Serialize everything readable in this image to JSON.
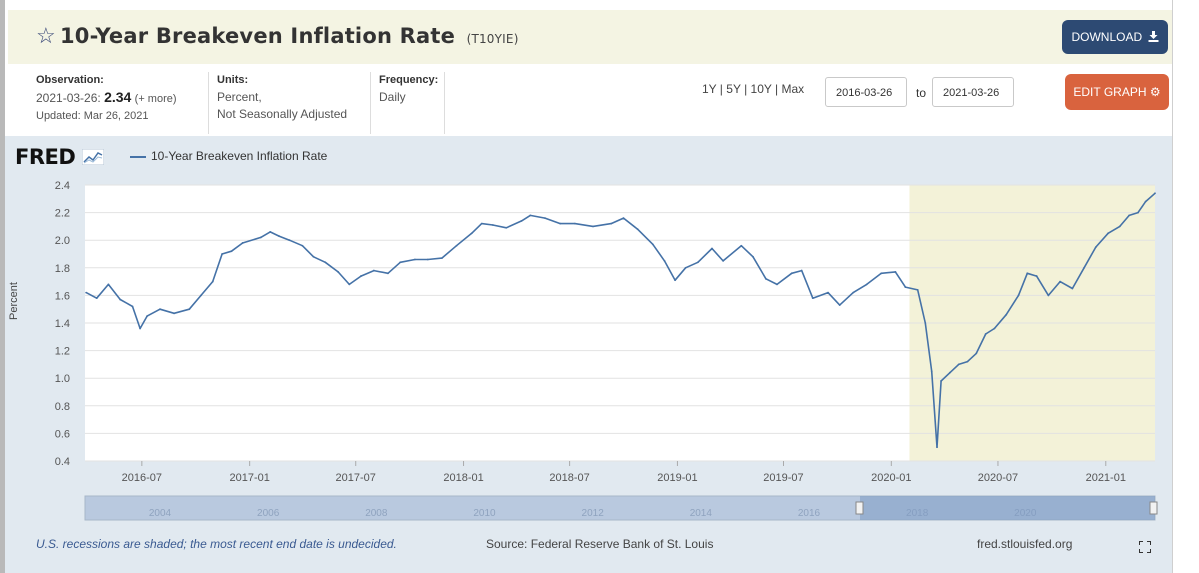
{
  "header": {
    "title": "10-Year Breakeven Inflation Rate",
    "series_id": "(T10YIE)",
    "download_label": "DOWNLOAD",
    "star_icon": "star-outline-icon",
    "download_icon": "download-icon"
  },
  "info": {
    "observation_label": "Observation:",
    "observation_date": "2021-03-26:",
    "observation_value": "2.34",
    "observation_more": "(+ more)",
    "updated": "Updated: Mar 26, 2021",
    "units_label": "Units:",
    "units_line1": "Percent,",
    "units_line2": "Not Seasonally Adjusted",
    "frequency_label": "Frequency:",
    "frequency_value": "Daily",
    "range_1y": "1Y",
    "range_5y": "5Y",
    "range_10y": "10Y",
    "range_max": "Max",
    "start_date": "2016-03-26",
    "to_label": "to",
    "end_date": "2021-03-26",
    "edit_label": "EDIT GRAPH",
    "edit_icon": "gear-icon"
  },
  "chart_header": {
    "logo": "FRED",
    "legend": "10-Year Breakeven Inflation Rate"
  },
  "footer": {
    "recession_note": "U.S. recessions are shaded; the most recent end date is undecided.",
    "source": "Source: Federal Reserve Bank of St. Louis",
    "url": "fred.stlouisfed.org",
    "fullscreen_icon": "fullscreen-icon"
  },
  "colors": {
    "line": "#4572a7",
    "recession": "#f3f2d8",
    "download": "#2d4a73",
    "edit": "#d9633e",
    "background": "#e1e9f0"
  },
  "chart_data": {
    "type": "line",
    "ylabel": "Percent",
    "ylim": [
      0.4,
      2.4
    ],
    "yticks": [
      "0.4",
      "0.6",
      "0.8",
      "1.0",
      "1.2",
      "1.4",
      "1.6",
      "1.8",
      "2.0",
      "2.2",
      "2.4"
    ],
    "xlim": [
      "2016-03-26",
      "2021-03-26"
    ],
    "xticks": [
      "2016-07",
      "2017-01",
      "2017-07",
      "2018-01",
      "2018-07",
      "2019-01",
      "2019-07",
      "2020-01",
      "2020-07",
      "2021-01"
    ],
    "grid": true,
    "recession_shading": [
      "2020-02-01",
      "2021-03-26"
    ],
    "series": [
      {
        "name": "10-Year Breakeven Inflation Rate",
        "points": [
          [
            "2016-03-28",
            1.62
          ],
          [
            "2016-04-15",
            1.58
          ],
          [
            "2016-05-05",
            1.68
          ],
          [
            "2016-05-25",
            1.57
          ],
          [
            "2016-06-15",
            1.52
          ],
          [
            "2016-06-28",
            1.36
          ],
          [
            "2016-07-10",
            1.45
          ],
          [
            "2016-08-01",
            1.5
          ],
          [
            "2016-08-25",
            1.47
          ],
          [
            "2016-09-20",
            1.5
          ],
          [
            "2016-10-10",
            1.6
          ],
          [
            "2016-10-30",
            1.7
          ],
          [
            "2016-11-15",
            1.9
          ],
          [
            "2016-12-01",
            1.92
          ],
          [
            "2016-12-20",
            1.98
          ],
          [
            "2017-01-20",
            2.02
          ],
          [
            "2017-02-05",
            2.06
          ],
          [
            "2017-02-20",
            2.03
          ],
          [
            "2017-03-10",
            2.0
          ],
          [
            "2017-04-01",
            1.96
          ],
          [
            "2017-04-20",
            1.88
          ],
          [
            "2017-05-10",
            1.84
          ],
          [
            "2017-06-01",
            1.77
          ],
          [
            "2017-06-20",
            1.68
          ],
          [
            "2017-07-10",
            1.74
          ],
          [
            "2017-08-01",
            1.78
          ],
          [
            "2017-08-25",
            1.76
          ],
          [
            "2017-09-15",
            1.84
          ],
          [
            "2017-10-10",
            1.86
          ],
          [
            "2017-11-01",
            1.86
          ],
          [
            "2017-11-25",
            1.87
          ],
          [
            "2017-12-20",
            1.96
          ],
          [
            "2018-01-15",
            2.05
          ],
          [
            "2018-02-01",
            2.12
          ],
          [
            "2018-02-20",
            2.11
          ],
          [
            "2018-03-15",
            2.09
          ],
          [
            "2018-04-10",
            2.14
          ],
          [
            "2018-04-25",
            2.18
          ],
          [
            "2018-05-20",
            2.16
          ],
          [
            "2018-06-15",
            2.12
          ],
          [
            "2018-07-10",
            2.12
          ],
          [
            "2018-08-10",
            2.1
          ],
          [
            "2018-09-10",
            2.12
          ],
          [
            "2018-10-01",
            2.16
          ],
          [
            "2018-10-25",
            2.08
          ],
          [
            "2018-11-20",
            1.97
          ],
          [
            "2018-12-10",
            1.85
          ],
          [
            "2018-12-28",
            1.71
          ],
          [
            "2019-01-15",
            1.8
          ],
          [
            "2019-02-05",
            1.84
          ],
          [
            "2019-03-01",
            1.94
          ],
          [
            "2019-03-20",
            1.85
          ],
          [
            "2019-04-20",
            1.96
          ],
          [
            "2019-05-10",
            1.88
          ],
          [
            "2019-06-01",
            1.72
          ],
          [
            "2019-06-20",
            1.68
          ],
          [
            "2019-07-15",
            1.76
          ],
          [
            "2019-08-01",
            1.78
          ],
          [
            "2019-08-20",
            1.58
          ],
          [
            "2019-09-15",
            1.62
          ],
          [
            "2019-10-05",
            1.53
          ],
          [
            "2019-10-28",
            1.62
          ],
          [
            "2019-11-20",
            1.68
          ],
          [
            "2019-12-15",
            1.76
          ],
          [
            "2020-01-08",
            1.77
          ],
          [
            "2020-01-25",
            1.66
          ],
          [
            "2020-02-15",
            1.64
          ],
          [
            "2020-02-28",
            1.4
          ],
          [
            "2020-03-10",
            1.05
          ],
          [
            "2020-03-19",
            0.5
          ],
          [
            "2020-03-26",
            0.98
          ],
          [
            "2020-04-10",
            1.04
          ],
          [
            "2020-04-25",
            1.1
          ],
          [
            "2020-05-10",
            1.12
          ],
          [
            "2020-05-25",
            1.18
          ],
          [
            "2020-06-10",
            1.32
          ],
          [
            "2020-06-25",
            1.36
          ],
          [
            "2020-07-15",
            1.46
          ],
          [
            "2020-08-05",
            1.6
          ],
          [
            "2020-08-20",
            1.76
          ],
          [
            "2020-09-05",
            1.74
          ],
          [
            "2020-09-25",
            1.6
          ],
          [
            "2020-10-15",
            1.7
          ],
          [
            "2020-11-05",
            1.65
          ],
          [
            "2020-11-25",
            1.8
          ],
          [
            "2020-12-15",
            1.95
          ],
          [
            "2021-01-05",
            2.05
          ],
          [
            "2021-01-25",
            2.1
          ],
          [
            "2021-02-10",
            2.18
          ],
          [
            "2021-02-25",
            2.2
          ],
          [
            "2021-03-10",
            2.28
          ],
          [
            "2021-03-26",
            2.34
          ]
        ]
      }
    ],
    "navigator": {
      "xticks": [
        "2004",
        "2006",
        "2008",
        "2010",
        "2012",
        "2014",
        "2016",
        "2018",
        "2020"
      ]
    }
  }
}
